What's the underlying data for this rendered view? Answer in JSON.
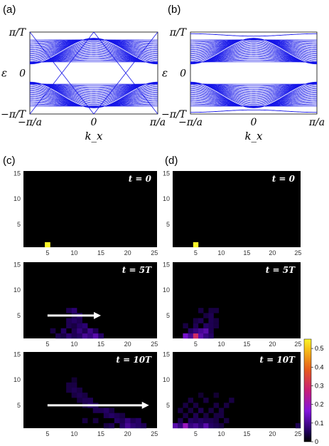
{
  "panels": {
    "a": "(a)",
    "b": "(b)",
    "c": "(c)",
    "d": "(d)"
  },
  "colors": {
    "band": "#1515e8",
    "background": "#000000",
    "arrow": "#ffffff"
  },
  "chart_data": [
    {
      "id": "a",
      "type": "line",
      "title": "",
      "xlabel": "k_x",
      "ylabel": "ε",
      "x_ticks": [
        "−π/a",
        "0",
        "π/a"
      ],
      "y_ticks": [
        "π/T",
        "0",
        "−π/T"
      ],
      "xlim": [
        -1,
        1
      ],
      "ylim": [
        -1,
        1
      ],
      "edge_states": "crossing"
    },
    {
      "id": "b",
      "type": "line",
      "title": "",
      "xlabel": "k_x",
      "ylabel": "ε",
      "x_ticks": [
        "−π/a",
        "0",
        "π/a"
      ],
      "y_ticks": [
        "π/T",
        "0",
        "−π/T"
      ],
      "xlim": [
        -1,
        1
      ],
      "ylim": [
        -1,
        1
      ],
      "edge_states": "gapped"
    },
    {
      "id": "c",
      "type": "heatmap",
      "x_ticks": [
        "5",
        "10",
        "15",
        "20",
        "25"
      ],
      "y_ticks": [
        "5",
        "10",
        "15"
      ],
      "xlim": [
        0.5,
        25.5
      ],
      "ylim": [
        0.5,
        15.5
      ],
      "colormap": "plasma-like (black-purple-red-yellow)",
      "subplots": [
        {
          "time": "t = 0",
          "hot": [
            [
              5,
              1,
              0.55
            ]
          ],
          "arrow": null
        },
        {
          "time": "t = 5T",
          "hot": [
            [
              7,
              1,
              0.05
            ],
            [
              8,
              1,
              0.04
            ],
            [
              9,
              1,
              0.07
            ],
            [
              10,
              1,
              0.05
            ],
            [
              11,
              1,
              0.06
            ],
            [
              12,
              1,
              0.1
            ],
            [
              13,
              1,
              0.08
            ],
            [
              14,
              1,
              0.12
            ],
            [
              15,
              1,
              0.06
            ],
            [
              6,
              2,
              0.04
            ],
            [
              8,
              2,
              0.06
            ],
            [
              10,
              2,
              0.05
            ],
            [
              11,
              2,
              0.08
            ],
            [
              12,
              2,
              0.05
            ],
            [
              13,
              2,
              0.09
            ],
            [
              14,
              2,
              0.05
            ],
            [
              9,
              3,
              0.05
            ],
            [
              10,
              3,
              0.04
            ],
            [
              11,
              3,
              0.06
            ],
            [
              12,
              3,
              0.07
            ],
            [
              9,
              4,
              0.05
            ],
            [
              10,
              4,
              0.06
            ],
            [
              11,
              4,
              0.05
            ],
            [
              10,
              5,
              0.04
            ],
            [
              11,
              5,
              0.06
            ],
            [
              9,
              6,
              0.05
            ],
            [
              10,
              6,
              0.07
            ]
          ],
          "arrow": {
            "from": 5,
            "to": 15,
            "y": 5
          }
        },
        {
          "time": "t = 10T",
          "hot": [
            [
              19,
              1,
              0.06
            ],
            [
              20,
              1,
              0.1
            ],
            [
              21,
              1,
              0.07
            ],
            [
              22,
              1,
              0.06
            ],
            [
              23,
              1,
              0.05
            ],
            [
              16,
              1,
              0.04
            ],
            [
              17,
              1,
              0.05
            ],
            [
              18,
              2,
              0.06
            ],
            [
              19,
              2,
              0.05
            ],
            [
              20,
              2,
              0.08
            ],
            [
              21,
              2,
              0.05
            ],
            [
              22,
              2,
              0.06
            ],
            [
              12,
              2,
              0.04
            ],
            [
              14,
              2,
              0.04
            ],
            [
              16,
              3,
              0.05
            ],
            [
              17,
              3,
              0.06
            ],
            [
              18,
              3,
              0.05
            ],
            [
              19,
              3,
              0.04
            ],
            [
              14,
              4,
              0.05
            ],
            [
              15,
              4,
              0.05
            ],
            [
              16,
              4,
              0.06
            ],
            [
              17,
              4,
              0.04
            ],
            [
              12,
              5,
              0.04
            ],
            [
              13,
              5,
              0.06
            ],
            [
              14,
              5,
              0.05
            ],
            [
              11,
              6,
              0.04
            ],
            [
              12,
              6,
              0.05
            ],
            [
              13,
              6,
              0.05
            ],
            [
              10,
              7,
              0.04
            ],
            [
              11,
              7,
              0.05
            ],
            [
              12,
              7,
              0.04
            ],
            [
              9,
              8,
              0.04
            ],
            [
              10,
              8,
              0.05
            ],
            [
              11,
              8,
              0.04
            ],
            [
              9,
              9,
              0.04
            ],
            [
              10,
              9,
              0.04
            ],
            [
              10,
              10,
              0.03
            ]
          ],
          "arrow": {
            "from": 5,
            "to": 24,
            "y": 5
          }
        }
      ]
    },
    {
      "id": "d",
      "type": "heatmap",
      "x_ticks": [
        "5",
        "10",
        "15",
        "20",
        "25"
      ],
      "y_ticks": [
        "5",
        "10",
        "15"
      ],
      "xlim": [
        0.5,
        25.5
      ],
      "ylim": [
        0.5,
        15.5
      ],
      "colormap": "plasma-like (black-purple-red-yellow)",
      "colorbar_ticks": [
        "0.5",
        "0.4",
        "0.3",
        "0.2",
        "0.1",
        "0"
      ],
      "colorbar_range": [
        0,
        0.55
      ],
      "subplots": [
        {
          "time": "t = 0",
          "hot": [
            [
              5,
              1,
              0.55
            ]
          ]
        },
        {
          "time": "t = 5T",
          "hot": [
            [
              3,
              1,
              0.15
            ],
            [
              4,
              1,
              0.1
            ],
            [
              5,
              1,
              0.3
            ],
            [
              6,
              1,
              0.12
            ],
            [
              7,
              1,
              0.08
            ],
            [
              8,
              1,
              0.06
            ],
            [
              4,
              2,
              0.06
            ],
            [
              5,
              2,
              0.08
            ],
            [
              6,
              2,
              0.1
            ],
            [
              7,
              2,
              0.12
            ],
            [
              8,
              2,
              0.05
            ],
            [
              3,
              3,
              0.04
            ],
            [
              5,
              3,
              0.05
            ],
            [
              7,
              3,
              0.06
            ],
            [
              8,
              3,
              0.05
            ],
            [
              9,
              3,
              0.04
            ],
            [
              5,
              4,
              0.04
            ],
            [
              6,
              4,
              0.05
            ],
            [
              8,
              4,
              0.05
            ],
            [
              9,
              4,
              0.04
            ],
            [
              7,
              5,
              0.04
            ],
            [
              8,
              5,
              0.05
            ],
            [
              6,
              6,
              0.04
            ],
            [
              8,
              6,
              0.04
            ],
            [
              9,
              6,
              0.04
            ]
          ]
        },
        {
          "time": "t = 10T",
          "hot": [
            [
              1,
              1,
              0.12
            ],
            [
              2,
              1,
              0.08
            ],
            [
              3,
              1,
              0.2
            ],
            [
              4,
              1,
              0.08
            ],
            [
              5,
              1,
              0.1
            ],
            [
              6,
              1,
              0.07
            ],
            [
              7,
              1,
              0.12
            ],
            [
              8,
              1,
              0.06
            ],
            [
              9,
              1,
              0.05
            ],
            [
              10,
              1,
              0.04
            ],
            [
              25,
              1,
              0.05
            ],
            [
              2,
              2,
              0.05
            ],
            [
              4,
              2,
              0.06
            ],
            [
              5,
              2,
              0.05
            ],
            [
              6,
              2,
              0.06
            ],
            [
              7,
              2,
              0.05
            ],
            [
              8,
              2,
              0.05
            ],
            [
              9,
              2,
              0.04
            ],
            [
              11,
              2,
              0.04
            ],
            [
              3,
              3,
              0.04
            ],
            [
              5,
              3,
              0.05
            ],
            [
              7,
              3,
              0.04
            ],
            [
              9,
              3,
              0.04
            ],
            [
              10,
              3,
              0.04
            ],
            [
              2,
              4,
              0.04
            ],
            [
              4,
              4,
              0.04
            ],
            [
              6,
              4,
              0.05
            ],
            [
              8,
              4,
              0.04
            ],
            [
              10,
              4,
              0.04
            ],
            [
              3,
              5,
              0.04
            ],
            [
              5,
              5,
              0.04
            ],
            [
              9,
              5,
              0.04
            ],
            [
              11,
              5,
              0.04
            ],
            [
              4,
              6,
              0.04
            ],
            [
              7,
              6,
              0.04
            ],
            [
              12,
              6,
              0.04
            ],
            [
              6,
              7,
              0.03
            ],
            [
              9,
              7,
              0.03
            ]
          ]
        }
      ]
    }
  ]
}
